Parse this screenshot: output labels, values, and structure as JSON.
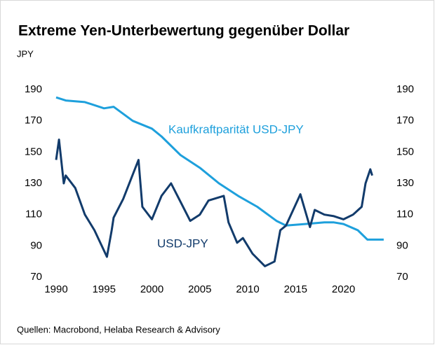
{
  "chart_data": {
    "type": "line",
    "title": "Extreme Yen-Unterbewertung gegenüber Dollar",
    "y_label": "JPY",
    "source": "Quellen: Macrobond, Helaba Research & Advisory",
    "annotations": [
      "Kaufkraftparität USD-JPY",
      "USD-JPY"
    ],
    "xlim": [
      1990,
      2024.5
    ],
    "xticks": [
      1990,
      1995,
      2000,
      2005,
      2010,
      2015,
      2020
    ],
    "ylim": [
      70,
      190
    ],
    "yticks": [
      70,
      90,
      110,
      130,
      150,
      170,
      190
    ],
    "series": [
      {
        "name": "Kaufkraftparität USD-JPY",
        "color": "#1ea0dc",
        "x": [
          1990,
          1991,
          1993,
          1995,
          1996,
          1998,
          2000,
          2001,
          2003,
          2005,
          2007,
          2009,
          2011,
          2013,
          2014,
          2016,
          2018,
          2019,
          2020,
          2021.5,
          2022.5,
          2024.2
        ],
        "values": [
          185,
          183,
          182,
          178,
          179,
          170,
          165,
          160,
          148,
          140,
          130,
          122,
          115,
          106,
          103,
          104,
          105,
          105,
          104,
          100,
          94,
          94
        ]
      },
      {
        "name": "USD-JPY",
        "color": "#123b6b",
        "x": [
          1990,
          1990.3,
          1990.8,
          1991,
          1992,
          1993,
          1994,
          1995.3,
          1995.8,
          1996,
          1997,
          1998.6,
          1999,
          2000,
          2001,
          2002,
          2003,
          2004,
          2005,
          2005.9,
          2007.5,
          2008,
          2008.9,
          2009.5,
          2010.5,
          2011.8,
          2012.8,
          2013.4,
          2014,
          2015.5,
          2016.5,
          2017,
          2018,
          2019,
          2020,
          2021,
          2021.9,
          2022.3,
          2022.8,
          2023
        ],
        "values": [
          145,
          158,
          130,
          135,
          127,
          110,
          100,
          83,
          100,
          108,
          120,
          145,
          115,
          107,
          122,
          130,
          118,
          106,
          110,
          119,
          122,
          105,
          92,
          95,
          85,
          77,
          80,
          100,
          103,
          123,
          102,
          113,
          110,
          109,
          107,
          110,
          115,
          130,
          139,
          135
        ]
      }
    ]
  }
}
